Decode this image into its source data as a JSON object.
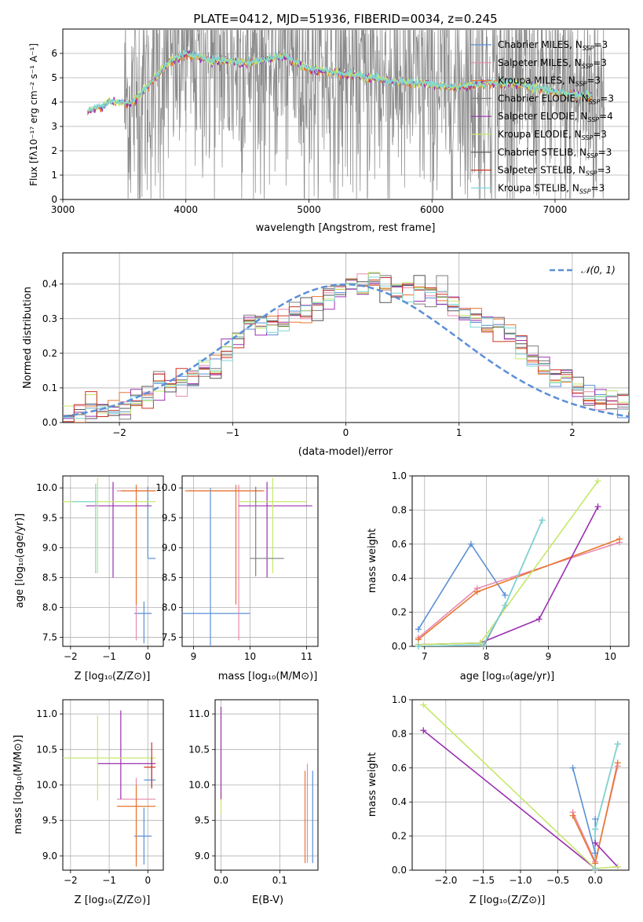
{
  "title": "PLATE=0412, MJD=51936, FIBERID=0034, z=0.245",
  "colors": {
    "grid": "#b0b0b0",
    "Chabrier MILES": "#5b8fd6",
    "Salpeter MILES": "#e88ab0",
    "Kroupa MILES": "#e8772e",
    "Chabrier ELODIE": "#7f7f7f",
    "Salpeter ELODIE": "#9b30b0",
    "Kroupa ELODIE": "#c6e86a",
    "Chabrier STELIB": "#555555",
    "Salpeter STELIB": "#cc3322",
    "Kroupa STELIB": "#7fd6d6",
    "normal": "#5b8fd6"
  },
  "panel1": {
    "xlabel": "wavelength [Angstrom, rest frame]",
    "ylabel": "Flux [fλ10⁻¹⁷ erg cm⁻² s⁻¹ A⁻¹]",
    "legend": [
      {
        "model": "Chabrier MILES",
        "label": "Chabrier MILES, N",
        "n": "=3"
      },
      {
        "model": "Salpeter MILES",
        "label": "Salpeter MILES, N",
        "n": "=3"
      },
      {
        "model": "Kroupa MILES",
        "label": "Kroupa MILES, N",
        "n": "=3"
      },
      {
        "model": "Chabrier ELODIE",
        "label": "Chabrier ELODIE, N",
        "n": "=3"
      },
      {
        "model": "Salpeter ELODIE",
        "label": "Salpeter ELODIE, N",
        "n": "=4"
      },
      {
        "model": "Kroupa ELODIE",
        "label": "Kroupa ELODIE, N",
        "n": "=3"
      },
      {
        "model": "Chabrier STELIB",
        "label": "Chabrier STELIB, N",
        "n": "=3"
      },
      {
        "model": "Salpeter STELIB",
        "label": "Salpeter STELIB, N",
        "n": "=3"
      },
      {
        "model": "Kroupa STELIB",
        "label": "Kroupa STELIB, N",
        "n": "=3"
      }
    ],
    "legend_sub": "SSP"
  },
  "panel2": {
    "xlabel": "(data-model)/error",
    "ylabel": "Normed distribution",
    "legend": "𝒩(0, 1)"
  },
  "panel3": {
    "xlabel": "Z [log₁₀(Z/Z⊙)]",
    "ylabel": "age  [log₁₀(age/yr)]"
  },
  "panel4": {
    "xlabel": "mass [log₁₀(M/M⊙)]"
  },
  "panel5": {
    "xlabel": "age  [log₁₀(age/yr)]",
    "ylabel": "mass weight"
  },
  "panel6": {
    "xlabel": "Z [log₁₀(Z/Z⊙)]",
    "ylabel": "mass [log₁₀(M/M⊙)]"
  },
  "panel7": {
    "xlabel": "E(B-V)"
  },
  "panel8": {
    "xlabel": "Z [log₁₀(Z/Z⊙)]",
    "ylabel": "mass weight"
  },
  "chart_data": [
    {
      "type": "line",
      "title": "PLATE=0412, MJD=51936, FIBERID=0034, z=0.245",
      "xlim": [
        3000,
        7600
      ],
      "ylim": [
        0,
        7
      ],
      "xticks": [
        3000,
        4000,
        5000,
        6000,
        7000
      ],
      "yticks": [
        0,
        1,
        2,
        3,
        4,
        5,
        6
      ],
      "continuum": [
        [
          3200,
          3.6
        ],
        [
          3400,
          4.05
        ],
        [
          3550,
          3.9
        ],
        [
          3700,
          4.7
        ],
        [
          3850,
          5.6
        ],
        [
          4000,
          6.0
        ],
        [
          4200,
          5.75
        ],
        [
          4500,
          5.6
        ],
        [
          4800,
          5.9
        ],
        [
          5000,
          5.35
        ],
        [
          5300,
          5.15
        ],
        [
          5600,
          4.9
        ],
        [
          5900,
          4.75
        ],
        [
          6200,
          4.6
        ],
        [
          6500,
          4.8
        ],
        [
          6700,
          4.75
        ],
        [
          7000,
          4.4
        ],
        [
          7300,
          4.2
        ]
      ],
      "data_noise_range": [
        3500,
        7400
      ],
      "grid": true,
      "legend_loc": "upper right"
    },
    {
      "type": "step",
      "xlim": [
        -2.5,
        2.5
      ],
      "ylim": [
        0,
        0.49
      ],
      "xticks": [
        -2,
        -1,
        0,
        1,
        2
      ],
      "yticks": [
        0.0,
        0.1,
        0.2,
        0.3,
        0.4
      ],
      "bin_width": 0.1,
      "bin_start": -2.5,
      "hist_mean": [
        0.02,
        0.03,
        0.03,
        0.035,
        0.04,
        0.05,
        0.06,
        0.08,
        0.11,
        0.11,
        0.12,
        0.14,
        0.16,
        0.15,
        0.2,
        0.24,
        0.29,
        0.29,
        0.28,
        0.29,
        0.31,
        0.32,
        0.34,
        0.36,
        0.38,
        0.39,
        0.4,
        0.41,
        0.4,
        0.38,
        0.39,
        0.38,
        0.37,
        0.36,
        0.33,
        0.31,
        0.3,
        0.28,
        0.27,
        0.25,
        0.22,
        0.19,
        0.16,
        0.14,
        0.13,
        0.1,
        0.08,
        0.07,
        0.06,
        0.05,
        0.04
      ],
      "normal": {
        "name": "𝒩(0, 1)",
        "mu": 0,
        "sigma": 1
      },
      "grid": true,
      "legend_loc": "upper right"
    },
    {
      "type": "scatter",
      "xlim": [
        -2.2,
        0.4
      ],
      "ylim": [
        7.35,
        10.2
      ],
      "xticks": [
        -2,
        -1,
        0
      ],
      "yticks": [
        7.5,
        8.0,
        8.5,
        9.0,
        9.5,
        10.0
      ],
      "points": [
        {
          "model": "Chabrier MILES",
          "x": -0.1,
          "xerr": [
            0.25,
            0.2
          ],
          "y": 7.9,
          "yerr": [
            0.5,
            0.2
          ]
        },
        {
          "model": "Chabrier MILES",
          "x": 0.0,
          "xerr": [
            0.0,
            0.2
          ],
          "y": 8.82,
          "yerr": [
            0,
            1.2
          ]
        },
        {
          "model": "Salpeter MILES",
          "x": -0.3,
          "xerr": [
            0.5,
            0.5
          ],
          "y": 9.95,
          "yerr": [
            2.5,
            0.1
          ]
        },
        {
          "model": "Kroupa MILES",
          "x": -0.3,
          "xerr": [
            0.4,
            0.5
          ],
          "y": 9.95,
          "yerr": [
            1.9,
            0.1
          ]
        },
        {
          "model": "Salpeter ELODIE",
          "x": -0.9,
          "xerr": [
            0.7,
            1.0
          ],
          "y": 9.7,
          "yerr": [
            1.2,
            0.4
          ]
        },
        {
          "model": "Kroupa ELODIE",
          "x": -1.3,
          "xerr": [
            0.9,
            1.5
          ],
          "y": 9.77,
          "yerr": [
            1.2,
            0.4
          ]
        },
        {
          "model": "Kroupa STELIB",
          "x": -1.35,
          "xerr": [
            0.6,
            0.0
          ],
          "y": 9.77,
          "yerr": [
            1.2,
            0.3
          ]
        }
      ],
      "grid": true
    },
    {
      "type": "scatter",
      "xlim": [
        8.8,
        11.2
      ],
      "ylim": [
        7.35,
        10.2
      ],
      "xticks": [
        9,
        10,
        11
      ],
      "yticks": [
        7.5,
        8.0,
        8.5,
        9.0,
        9.5,
        10.0
      ],
      "points": [
        {
          "model": "Chabrier MILES",
          "x": 9.3,
          "xerr": [
            0.6,
            0.7
          ],
          "y": 7.9,
          "yerr": [
            0.55,
            2.1
          ]
        },
        {
          "model": "Salpeter MILES",
          "x": 9.8,
          "xerr": [
            0.9,
            0.4
          ],
          "y": 9.95,
          "yerr": [
            2.5,
            0.1
          ]
        },
        {
          "model": "Kroupa MILES",
          "x": 9.75,
          "xerr": [
            0.9,
            0.5
          ],
          "y": 9.95,
          "yerr": [
            1.9,
            0.1
          ]
        },
        {
          "model": "Salpeter ELODIE",
          "x": 10.3,
          "xerr": [
            0.5,
            0.8
          ],
          "y": 9.7,
          "yerr": [
            1.2,
            0.4
          ]
        },
        {
          "model": "Kroupa ELODIE",
          "x": 10.4,
          "xerr": [
            0.6,
            0.6
          ],
          "y": 9.77,
          "yerr": [
            1.2,
            0.4
          ]
        },
        {
          "model": "Chabrier ELODIE",
          "x": 10.1,
          "xerr": [
            0.1,
            0.5
          ],
          "y": 8.82,
          "yerr": [
            0.3,
            1.2
          ]
        }
      ],
      "grid": true
    },
    {
      "type": "line",
      "xlim": [
        6.8,
        10.3
      ],
      "ylim": [
        0,
        1.0
      ],
      "xticks": [
        7,
        8,
        9,
        10
      ],
      "yticks": [
        0.0,
        0.2,
        0.4,
        0.6,
        0.8,
        1.0
      ],
      "series": [
        {
          "model": "Chabrier MILES",
          "x": [
            6.9,
            7.75,
            8.3
          ],
          "y": [
            0.1,
            0.6,
            0.3
          ]
        },
        {
          "model": "Salpeter MILES",
          "x": [
            6.9,
            7.85,
            10.15
          ],
          "y": [
            0.05,
            0.34,
            0.61
          ]
        },
        {
          "model": "Kroupa MILES",
          "x": [
            6.9,
            7.85,
            10.15
          ],
          "y": [
            0.04,
            0.32,
            0.63
          ]
        },
        {
          "model": "Salpeter ELODIE",
          "x": [
            6.9,
            7.9,
            8.85,
            9.8
          ],
          "y": [
            0.01,
            0.02,
            0.16,
            0.82
          ]
        },
        {
          "model": "Kroupa ELODIE",
          "x": [
            6.9,
            7.9,
            9.8
          ],
          "y": [
            0.01,
            0.02,
            0.97
          ]
        },
        {
          "model": "Chabrier ELODIE",
          "x": [
            6.9,
            7.95,
            8.3,
            8.9
          ],
          "y": [
            0.0,
            0.0,
            0.24,
            0.74
          ]
        },
        {
          "model": "Kroupa STELIB",
          "x": [
            6.9,
            7.95,
            8.3,
            8.9
          ],
          "y": [
            0.0,
            0.01,
            0.24,
            0.74
          ]
        }
      ],
      "grid": true
    },
    {
      "type": "scatter",
      "xlim": [
        -2.2,
        0.4
      ],
      "ylim": [
        8.8,
        11.2
      ],
      "xticks": [
        -2,
        -1,
        0
      ],
      "yticks": [
        9.0,
        9.5,
        10.0,
        10.5,
        11.0
      ],
      "points": [
        {
          "model": "Chabrier MILES",
          "x": -0.1,
          "xerr": [
            0.25,
            0.2
          ],
          "y": 9.28,
          "yerr": [
            0.4,
            0.4
          ]
        },
        {
          "model": "Chabrier MILES",
          "x": 0.1,
          "xerr": [
            0.2,
            0.1
          ],
          "y": 10.07,
          "yerr": [
            0.1,
            0.3
          ]
        },
        {
          "model": "Salpeter MILES",
          "x": -0.3,
          "xerr": [
            0.5,
            0.5
          ],
          "y": 9.8,
          "yerr": [
            0.9,
            0.3
          ]
        },
        {
          "model": "Kroupa MILES",
          "x": -0.3,
          "xerr": [
            0.5,
            0.5
          ],
          "y": 9.7,
          "yerr": [
            0.85,
            0.3
          ]
        },
        {
          "model": "Salpeter ELODIE",
          "x": -0.7,
          "xerr": [
            0.6,
            0.9
          ],
          "y": 10.3,
          "yerr": [
            0.5,
            0.75
          ]
        },
        {
          "model": "Kroupa ELODIE",
          "x": -1.3,
          "xerr": [
            0.9,
            1.5
          ],
          "y": 10.38,
          "yerr": [
            0.6,
            0.6
          ]
        },
        {
          "model": "Salpeter STELIB",
          "x": 0.1,
          "xerr": [
            0.2,
            0.1
          ],
          "y": 10.25,
          "yerr": [
            0.3,
            0.35
          ]
        }
      ],
      "grid": true
    },
    {
      "type": "scatter",
      "xlim": [
        -0.01,
        0.165
      ],
      "ylim": [
        8.8,
        11.2
      ],
      "xticks": [
        0.0,
        0.1
      ],
      "yticks": [
        9.0,
        9.5,
        10.0,
        10.5,
        11.0
      ],
      "points": [
        {
          "model": "Kroupa ELODIE",
          "x": 0.0,
          "y": 10.4,
          "yerr": [
            0.8,
            0.7
          ]
        },
        {
          "model": "Salpeter ELODIE",
          "x": 0.0,
          "y": 10.3,
          "yerr": [
            0.5,
            0.8
          ]
        },
        {
          "model": "Salpeter MILES",
          "x": 0.147,
          "y": 9.8,
          "yerr": [
            0.9,
            0.5
          ]
        },
        {
          "model": "Kroupa MILES",
          "x": 0.143,
          "y": 9.6,
          "yerr": [
            0.7,
            0.6
          ]
        },
        {
          "model": "Chabrier MILES",
          "x": 0.156,
          "y": 9.6,
          "yerr": [
            0.7,
            0.6
          ]
        }
      ],
      "grid": true
    },
    {
      "type": "line",
      "xlim": [
        -2.45,
        0.45
      ],
      "ylim": [
        0,
        1.0
      ],
      "xticks": [
        -2.0,
        -1.5,
        -1.0,
        -0.5,
        0.0
      ],
      "yticks": [
        0.0,
        0.2,
        0.4,
        0.6,
        0.8,
        1.0
      ],
      "series": [
        {
          "model": "Chabrier MILES",
          "x": [
            -0.3,
            0.0,
            0.0
          ],
          "y": [
            0.6,
            0.1,
            0.3
          ]
        },
        {
          "model": "Salpeter MILES",
          "x": [
            -0.3,
            0.0,
            0.3
          ],
          "y": [
            0.34,
            0.05,
            0.61
          ]
        },
        {
          "model": "Kroupa MILES",
          "x": [
            -0.3,
            0.0,
            0.3
          ],
          "y": [
            0.32,
            0.04,
            0.63
          ]
        },
        {
          "model": "Salpeter ELODIE",
          "x": [
            -2.3,
            0.0,
            0.0,
            0.3
          ],
          "y": [
            0.82,
            0.01,
            0.16,
            0.02
          ]
        },
        {
          "model": "Kroupa ELODIE",
          "x": [
            -2.3,
            0.0,
            0.3
          ],
          "y": [
            0.97,
            0.01,
            0.02
          ]
        },
        {
          "model": "Chabrier ELODIE",
          "x": [
            0.0,
            0.0,
            0.3
          ],
          "y": [
            0.0,
            0.24,
            0.74
          ]
        },
        {
          "model": "Kroupa STELIB",
          "x": [
            0.0,
            0.0,
            0.3
          ],
          "y": [
            0.01,
            0.24,
            0.74
          ]
        }
      ],
      "grid": true
    }
  ]
}
